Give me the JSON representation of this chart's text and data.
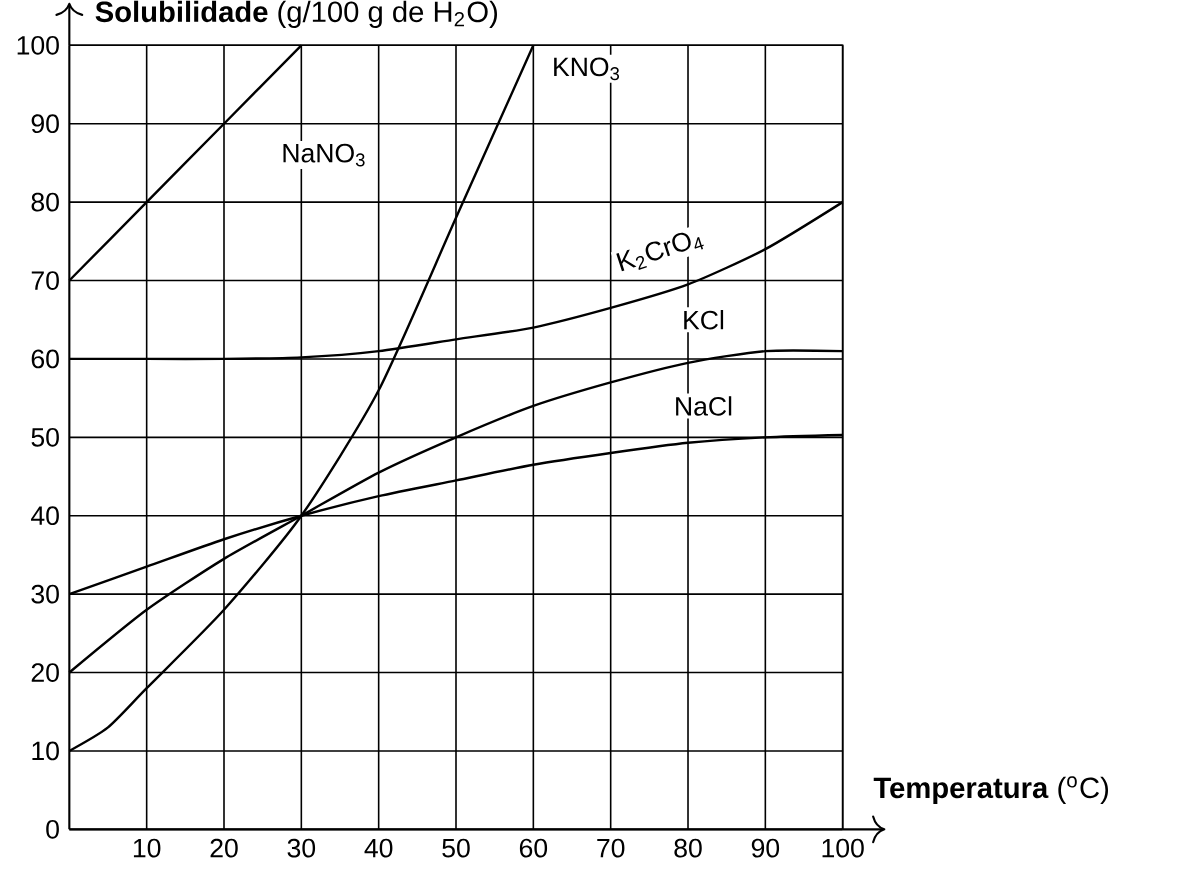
{
  "chart_data": {
    "type": "line",
    "xlabel": "**Temperatura** ($^{o}$C)",
    "ylabel": "**Solubilidade** (g/100 g de H$_{2}$O)",
    "xlim": [
      0,
      100
    ],
    "ylim": [
      0,
      100
    ],
    "xticks": [
      10,
      20,
      30,
      40,
      50,
      60,
      70,
      80,
      90,
      100
    ],
    "yticks": [
      0,
      10,
      20,
      30,
      40,
      50,
      60,
      70,
      80,
      90,
      100
    ],
    "grid": true,
    "marker": "none",
    "line_style": "solid",
    "series": [
      {
        "name": "NaNO$_{3}$",
        "color": "#000000",
        "x": [
          0,
          10,
          20,
          30
        ],
        "values": [
          70,
          80,
          90,
          100
        ]
      },
      {
        "name": "KNO$_{3}$",
        "color": "#000000",
        "x": [
          0,
          5,
          10,
          20,
          30,
          40,
          50,
          60
        ],
        "values": [
          10,
          13,
          18,
          28,
          40,
          56,
          78,
          100
        ]
      },
      {
        "name": "K$_{2}$CrO$_{4}$",
        "color": "#000000",
        "x": [
          0,
          10,
          20,
          30,
          40,
          50,
          60,
          70,
          80,
          90,
          100
        ],
        "values": [
          60,
          60,
          60,
          60.2,
          61,
          62.5,
          64,
          66.5,
          69.5,
          74,
          80
        ]
      },
      {
        "name": "KCl",
        "color": "#000000",
        "x": [
          0,
          10,
          20,
          30,
          40,
          50,
          60,
          70,
          80,
          90,
          100
        ],
        "values": [
          20,
          28,
          34.5,
          40,
          45.5,
          50,
          54,
          57,
          59.5,
          61,
          61
        ]
      },
      {
        "name": "NaCl",
        "color": "#000000",
        "x": [
          0,
          10,
          20,
          30,
          40,
          50,
          60,
          70,
          80,
          90,
          100
        ],
        "values": [
          30,
          33.5,
          37,
          40,
          42.5,
          44.5,
          46.5,
          48,
          49.3,
          50,
          50.3
        ]
      }
    ]
  }
}
